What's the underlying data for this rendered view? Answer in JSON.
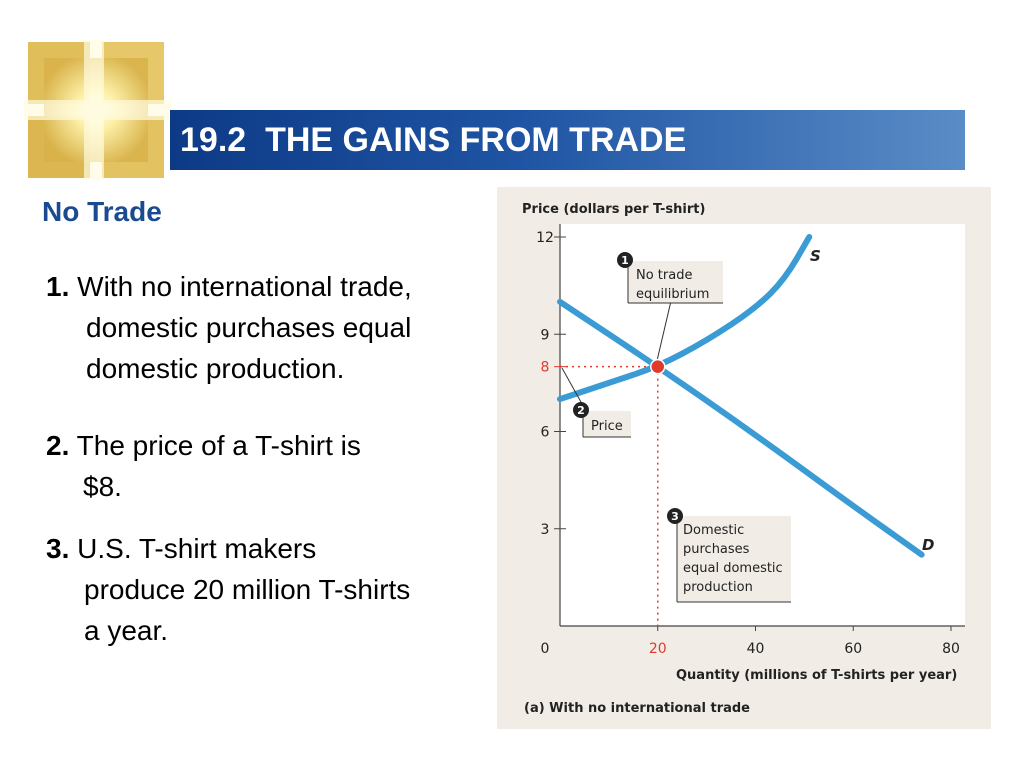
{
  "header": {
    "title": "19.2  THE GAINS FROM TRADE"
  },
  "section": {
    "heading": "No Trade"
  },
  "points": [
    {
      "number": "1.",
      "lines": [
        "With no international trade,",
        "domestic purchases equal",
        "domestic production."
      ]
    },
    {
      "number": "2.",
      "lines": [
        "The price of a T-shirt is",
        "$8."
      ]
    },
    {
      "number": "3.",
      "lines": [
        "U.S. T-shirt makers",
        "produce 20 million T-shirts",
        "a year."
      ]
    }
  ],
  "colors": {
    "title_bar": "#1f55a4",
    "heading": "#1a4a8f",
    "curve": "#3a9bd5",
    "highlight": "#e03a2a",
    "panel_bg": "#f1ede6"
  },
  "chart_data": {
    "type": "line",
    "ylabel": "Price (dollars per T-shirt)",
    "xlabel": "Quantity (millions of T-shirts per year)",
    "caption": "(a) With no international trade",
    "xlim": [
      0,
      80
    ],
    "ylim": [
      0,
      12
    ],
    "x_ticks": [
      "0",
      "20",
      "40",
      "60",
      "80"
    ],
    "y_ticks": [
      "3",
      "6",
      "9",
      "12"
    ],
    "highlight_x_tick": "20",
    "highlight_y_tick": "8",
    "series": [
      {
        "name": "S",
        "points": [
          [
            0,
            7.0
          ],
          [
            10,
            7.5
          ],
          [
            20,
            8.0
          ],
          [
            30,
            8.8
          ],
          [
            40,
            9.8
          ],
          [
            46,
            10.7
          ],
          [
            51,
            12.0
          ]
        ]
      },
      {
        "name": "D",
        "points": [
          [
            0,
            10.0
          ],
          [
            20,
            8.0
          ],
          [
            40,
            5.9
          ],
          [
            60,
            3.7
          ],
          [
            74,
            2.2
          ]
        ]
      }
    ],
    "equilibrium": {
      "x": 20,
      "y": 8
    },
    "annotations": [
      {
        "marker": "1",
        "text": [
          "No trade",
          "equilibrium"
        ]
      },
      {
        "marker": "2",
        "text": [
          "Price"
        ]
      },
      {
        "marker": "3",
        "text": [
          "Domestic",
          "purchases",
          "equal domestic",
          "production"
        ]
      }
    ]
  }
}
